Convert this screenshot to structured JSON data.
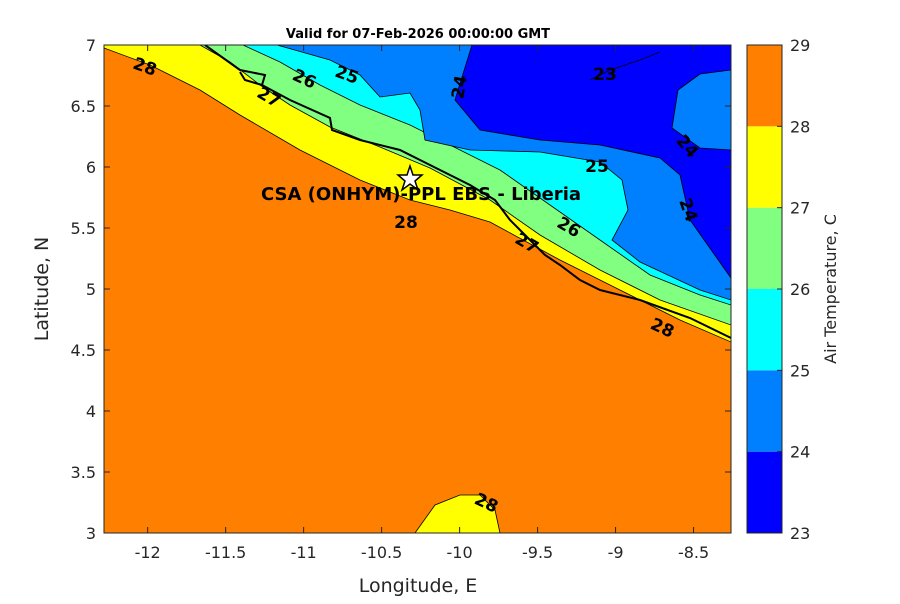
{
  "chart_data": {
    "type": "heatmap",
    "subtype": "filled-contour-map",
    "title": "Valid for 07-Feb-2026 00:00:00 GMT",
    "xlabel": "Longitude, E",
    "ylabel": "Latitude, N",
    "xlim": [
      -12.28,
      -8.26
    ],
    "ylim": [
      3,
      7
    ],
    "xticks": [
      "-12",
      "-11.5",
      "-11",
      "-10.5",
      "-10",
      "-9.5",
      "-9",
      "-8.5"
    ],
    "yticks": [
      "3",
      "3.5",
      "4",
      "4.5",
      "5",
      "5.5",
      "6",
      "6.5",
      "7"
    ],
    "colorbar": {
      "label": "Air Temperature, C",
      "ticks": [
        "23",
        "24",
        "25",
        "26",
        "27",
        "28",
        "29"
      ],
      "levels": [
        23,
        24,
        25,
        26,
        27,
        28,
        29
      ],
      "colors": [
        "#0000ff",
        "#0080ff",
        "#00ffff",
        "#80ff80",
        "#ffff00",
        "#ff8000",
        "#ff0000"
      ]
    },
    "contour_labels": [
      "28",
      "27",
      "26",
      "25",
      "24",
      "23",
      "24",
      "24",
      "25",
      "26",
      "27",
      "28",
      "28",
      "28"
    ],
    "marker": {
      "label": "CSA (ONHYM)-PPL EBS  - Liberia",
      "lon": -10.3,
      "lat": 5.9
    }
  }
}
